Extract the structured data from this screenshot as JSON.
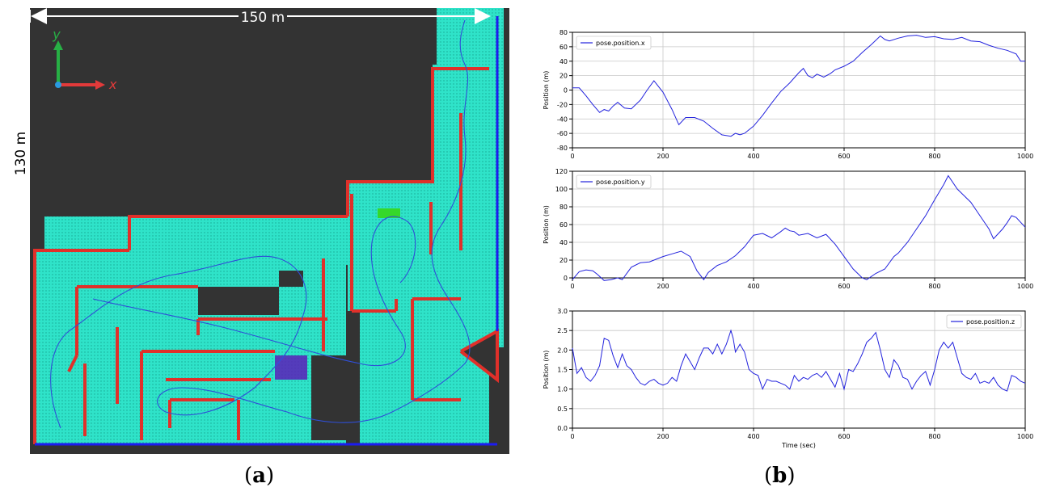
{
  "figure": {
    "panel_a": {
      "caption_open": "(",
      "caption_letter": "a",
      "caption_close": ")",
      "width_label": "150 m",
      "height_label": "130 m",
      "axis_y_label": "y",
      "axis_x_label": "x",
      "colors": {
        "background": "#333333",
        "free_space": "#2fe3c9",
        "wall": "#e0302a",
        "trajectory": "#2f4fd8",
        "boundary": "#1c1cf0",
        "axis_y": "#27b045",
        "axis_x": "#e23a3a",
        "origin": "#2a9ae0"
      }
    },
    "panel_b": {
      "caption_open": "(",
      "caption_letter": "b",
      "caption_close": ")"
    }
  },
  "chart_data": [
    {
      "type": "line",
      "series": [
        {
          "name": "pose.position.x",
          "x": [
            0,
            15,
            30,
            45,
            60,
            70,
            80,
            90,
            100,
            115,
            130,
            150,
            165,
            180,
            200,
            220,
            235,
            250,
            270,
            290,
            310,
            330,
            350,
            360,
            370,
            380,
            400,
            420,
            440,
            460,
            480,
            500,
            510,
            520,
            530,
            540,
            555,
            570,
            580,
            600,
            620,
            640,
            660,
            680,
            690,
            700,
            720,
            740,
            760,
            780,
            800,
            820,
            840,
            860,
            880,
            900,
            920,
            940,
            960,
            980,
            990,
            1000
          ],
          "values": [
            3,
            3,
            -8,
            -20,
            -31,
            -27,
            -29,
            -22,
            -17,
            -25,
            -26,
            -14,
            0,
            13,
            -3,
            -27,
            -48,
            -38,
            -38,
            -43,
            -53,
            -62,
            -64,
            -60,
            -62,
            -60,
            -50,
            -35,
            -18,
            -2,
            10,
            24,
            30,
            20,
            17,
            22,
            18,
            23,
            28,
            33,
            40,
            52,
            63,
            75,
            70,
            68,
            72,
            75,
            76,
            73,
            74,
            71,
            70,
            73,
            68,
            67,
            62,
            58,
            55,
            50,
            40,
            40
          ]
        }
      ],
      "xlim": [
        0,
        1000
      ],
      "ylim": [
        -80,
        80
      ],
      "yticks": [
        -80,
        -60,
        -40,
        -20,
        0,
        20,
        40,
        60,
        80
      ],
      "xticks": [
        0,
        200,
        400,
        600,
        800,
        1000
      ],
      "xlabel": "",
      "ylabel": "Position (m)",
      "legend": "top-left",
      "grid": true,
      "color": "#2222dd"
    },
    {
      "type": "line",
      "series": [
        {
          "name": "pose.position.y",
          "x": [
            0,
            15,
            30,
            45,
            55,
            70,
            85,
            100,
            110,
            130,
            150,
            170,
            200,
            220,
            240,
            260,
            275,
            290,
            300,
            320,
            340,
            360,
            380,
            400,
            420,
            440,
            460,
            470,
            480,
            490,
            500,
            520,
            540,
            560,
            580,
            600,
            620,
            640,
            650,
            670,
            690,
            710,
            720,
            740,
            760,
            780,
            800,
            820,
            830,
            850,
            860,
            880,
            900,
            920,
            930,
            950,
            960,
            970,
            980,
            1000
          ],
          "values": [
            -2,
            7,
            9,
            8,
            4,
            -3,
            -2,
            0,
            -2,
            12,
            17,
            18,
            24,
            27,
            30,
            24,
            8,
            -2,
            6,
            14,
            18,
            25,
            35,
            48,
            50,
            45,
            52,
            56,
            53,
            52,
            48,
            50,
            45,
            49,
            38,
            24,
            10,
            0,
            -2,
            5,
            10,
            24,
            28,
            40,
            55,
            70,
            88,
            105,
            115,
            100,
            95,
            85,
            70,
            55,
            44,
            55,
            62,
            70,
            68,
            57
          ]
        }
      ],
      "xlim": [
        0,
        1000
      ],
      "ylim": [
        0,
        120
      ],
      "yticks": [
        0,
        20,
        40,
        60,
        80,
        100,
        120
      ],
      "xticks": [
        0,
        200,
        400,
        600,
        800,
        1000
      ],
      "xlabel": "",
      "ylabel": "Position (m)",
      "legend": "top-left",
      "grid": true,
      "color": "#2222dd"
    },
    {
      "type": "line",
      "series": [
        {
          "name": "pose.position.z",
          "x": [
            0,
            10,
            20,
            30,
            40,
            50,
            60,
            70,
            80,
            90,
            100,
            110,
            120,
            130,
            140,
            150,
            160,
            170,
            180,
            190,
            200,
            210,
            220,
            230,
            240,
            250,
            260,
            270,
            280,
            290,
            300,
            310,
            320,
            330,
            340,
            350,
            355,
            360,
            370,
            380,
            390,
            400,
            410,
            420,
            430,
            440,
            450,
            460,
            470,
            480,
            490,
            500,
            510,
            520,
            530,
            540,
            550,
            560,
            570,
            580,
            590,
            600,
            610,
            620,
            630,
            640,
            650,
            660,
            670,
            680,
            690,
            700,
            710,
            720,
            730,
            740,
            750,
            760,
            770,
            780,
            790,
            800,
            810,
            820,
            830,
            840,
            850,
            860,
            870,
            880,
            890,
            900,
            910,
            920,
            930,
            940,
            950,
            960,
            970,
            980,
            990,
            1000
          ],
          "values": [
            2.05,
            1.4,
            1.55,
            1.3,
            1.2,
            1.35,
            1.6,
            2.3,
            2.25,
            1.85,
            1.55,
            1.9,
            1.6,
            1.5,
            1.3,
            1.15,
            1.1,
            1.2,
            1.25,
            1.15,
            1.1,
            1.15,
            1.3,
            1.2,
            1.6,
            1.9,
            1.7,
            1.5,
            1.8,
            2.05,
            2.05,
            1.9,
            2.15,
            1.9,
            2.15,
            2.5,
            2.3,
            1.95,
            2.15,
            1.95,
            1.5,
            1.4,
            1.35,
            1.0,
            1.25,
            1.2,
            1.2,
            1.15,
            1.1,
            1.0,
            1.35,
            1.2,
            1.3,
            1.25,
            1.35,
            1.4,
            1.3,
            1.45,
            1.25,
            1.05,
            1.4,
            1.0,
            1.5,
            1.45,
            1.65,
            1.9,
            2.2,
            2.3,
            2.45,
            2.0,
            1.5,
            1.3,
            1.75,
            1.6,
            1.3,
            1.25,
            1.0,
            1.2,
            1.35,
            1.45,
            1.1,
            1.5,
            2.0,
            2.2,
            2.05,
            2.2,
            1.8,
            1.4,
            1.3,
            1.25,
            1.4,
            1.15,
            1.2,
            1.15,
            1.3,
            1.1,
            1.0,
            0.95,
            1.35,
            1.3,
            1.2,
            1.15
          ]
        }
      ],
      "xlim": [
        0,
        1000
      ],
      "ylim": [
        0,
        3
      ],
      "yticks": [
        0.0,
        0.5,
        1.0,
        1.5,
        2.0,
        2.5,
        3.0
      ],
      "ytick_labels": [
        "0.0",
        "0.5",
        "1.0",
        "1.5",
        "2.0",
        "2.5",
        "3.0"
      ],
      "xticks": [
        0,
        200,
        400,
        600,
        800,
        1000
      ],
      "xlabel": "Time (sec)",
      "ylabel": "Position (m)",
      "legend": "top-right",
      "grid": true,
      "color": "#2222dd"
    }
  ]
}
